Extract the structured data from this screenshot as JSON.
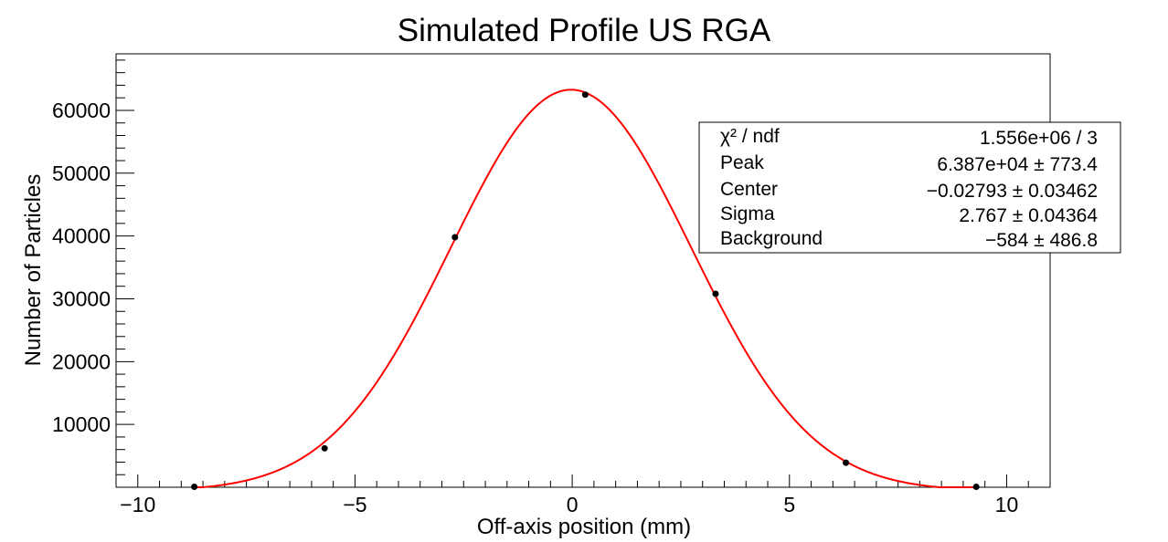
{
  "chart_data": {
    "type": "scatter",
    "title": "Simulated Profile US RGA",
    "xlabel": "Off-axis position (mm)",
    "ylabel": "Number of Particles",
    "xlim": [
      -10.5,
      11.0
    ],
    "ylim": [
      0,
      69000
    ],
    "x_ticks": [
      -10,
      -5,
      0,
      5,
      10
    ],
    "x_tick_labels": [
      "−10",
      "−5",
      "0",
      "5",
      "10"
    ],
    "y_ticks": [
      10000,
      20000,
      30000,
      40000,
      50000,
      60000
    ],
    "y_tick_labels": [
      "10000",
      "20000",
      "30000",
      "40000",
      "50000",
      "60000"
    ],
    "series": [
      {
        "type": "scatter",
        "color": "#000000",
        "points": [
          {
            "x": -8.7,
            "y": 0
          },
          {
            "x": -5.7,
            "y": 6200
          },
          {
            "x": -2.7,
            "y": 39800
          },
          {
            "x": 0.3,
            "y": 62500
          },
          {
            "x": 3.3,
            "y": 30800
          },
          {
            "x": 6.3,
            "y": 3900
          },
          {
            "x": 9.3,
            "y": 0
          }
        ]
      },
      {
        "type": "line",
        "color": "#ff0000",
        "function": "gaussian",
        "peak": 63870,
        "center": -0.02793,
        "sigma": 2.767,
        "background": -584,
        "x_range": [
          -8.7,
          9.3
        ]
      }
    ],
    "stats_box": {
      "rows": [
        {
          "label": "χ² / ndf",
          "value": "1.556e+06 / 3"
        },
        {
          "label": "Peak",
          "value": "6.387e+04 ± 773.4"
        },
        {
          "label": "Center",
          "value": "−0.02793 ± 0.03462"
        },
        {
          "label": "Sigma",
          "value": "2.767 ± 0.04364"
        },
        {
          "label": "Background",
          "value": "−584 ± 486.8"
        }
      ]
    }
  }
}
